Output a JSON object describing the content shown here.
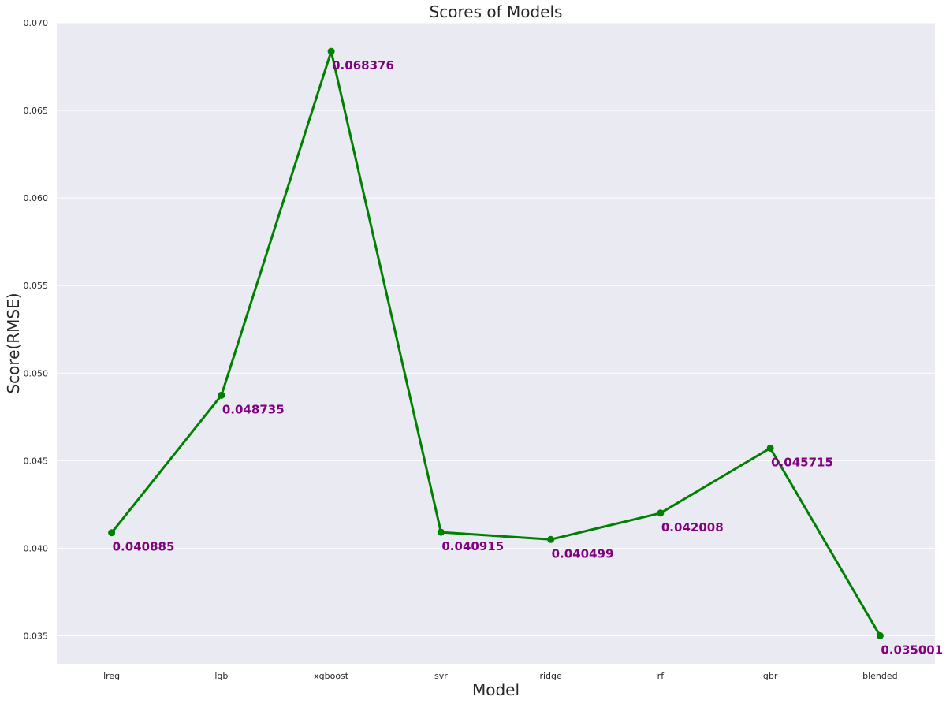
{
  "chart_data": {
    "type": "line",
    "title": "Scores of Models",
    "xlabel": "Model",
    "ylabel": "Score(RMSE)",
    "categories": [
      "lreg",
      "lgb",
      "xgboost",
      "svr",
      "ridge",
      "rf",
      "gbr",
      "blended"
    ],
    "series": [
      {
        "values": [
          0.040885,
          0.048735,
          0.068376,
          0.040915,
          0.040499,
          0.042008,
          0.045715,
          0.035001
        ],
        "color": "#008000",
        "marker": "circle"
      }
    ],
    "data_labels": [
      "0.040885",
      "0.048735",
      "0.068376",
      "0.040915",
      "0.040499",
      "0.042008",
      "0.045715",
      "0.035001"
    ],
    "data_label_color": "#800080",
    "ylim": [
      0.0334,
      0.07
    ],
    "yticks": [
      0.035,
      0.04,
      0.045,
      0.05,
      0.055,
      0.06,
      0.065,
      0.07
    ],
    "ytick_labels": [
      "0.035",
      "0.040",
      "0.045",
      "0.050",
      "0.055",
      "0.060",
      "0.065",
      "0.070"
    ],
    "grid": true,
    "grid_axis": "y",
    "background_color": "#eaeaf2",
    "grid_color": "#ffffff"
  }
}
